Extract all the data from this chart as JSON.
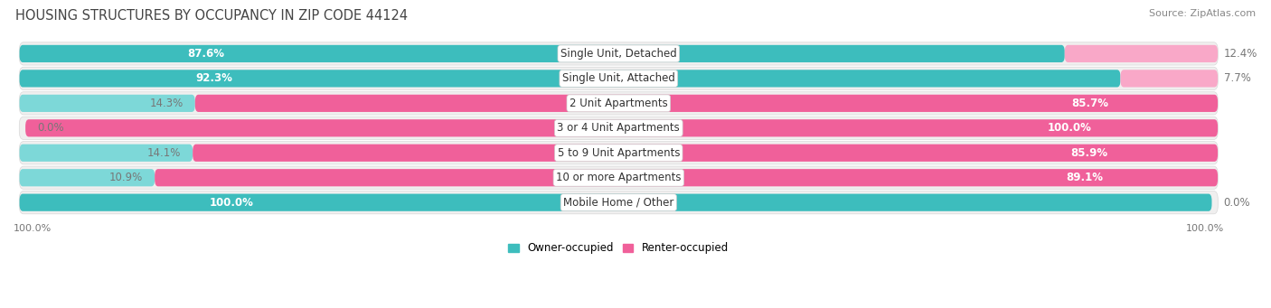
{
  "title": "HOUSING STRUCTURES BY OCCUPANCY IN ZIP CODE 44124",
  "source": "Source: ZipAtlas.com",
  "categories": [
    "Single Unit, Detached",
    "Single Unit, Attached",
    "2 Unit Apartments",
    "3 or 4 Unit Apartments",
    "5 to 9 Unit Apartments",
    "10 or more Apartments",
    "Mobile Home / Other"
  ],
  "owner_pct": [
    87.6,
    92.3,
    14.3,
    0.0,
    14.1,
    10.9,
    100.0
  ],
  "renter_pct": [
    12.4,
    7.7,
    85.7,
    100.0,
    85.9,
    89.1,
    0.0
  ],
  "owner_color_dark": "#3DBDBD",
  "owner_color_light": "#7DD8D8",
  "renter_color_dark": "#F0609A",
  "renter_color_light": "#F9A8C8",
  "row_bg": "#F0EFEF",
  "title_fontsize": 10.5,
  "source_fontsize": 8,
  "label_fontsize": 8.5,
  "pct_fontsize": 8.5,
  "tick_fontsize": 8,
  "bottom_pct_left": "100.0%",
  "bottom_pct_right": "100.0%"
}
